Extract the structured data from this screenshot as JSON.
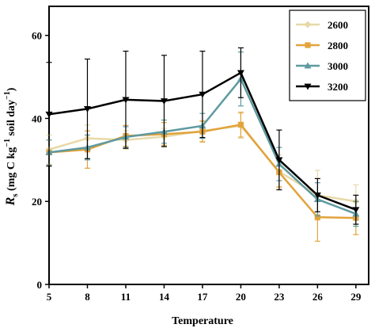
{
  "chart_data": {
    "type": "line",
    "xlabel": "Temperature",
    "ylabel": {
      "symbol": "R",
      "subscript": "s",
      "units_pre": " (mg C kg",
      "units_sup": "−1",
      "units_mid": " soil day",
      "units_sup2": "−1",
      "units_post": ")"
    },
    "x": [
      5,
      8,
      11,
      14,
      17,
      20,
      23,
      26,
      29
    ],
    "xticks": [
      "5",
      "8",
      "11",
      "14",
      "17",
      "20",
      "23",
      "26",
      "29"
    ],
    "yticks": [
      "0",
      "20",
      "40",
      "60"
    ],
    "xlim": [
      5,
      30
    ],
    "ylim": [
      0,
      67
    ],
    "grid": false,
    "legend_position": "top-right",
    "series": [
      {
        "name": "2600",
        "color": "#e8d9a8",
        "marker": "diamond",
        "values": [
          32.5,
          35.2,
          34.8,
          35.6,
          37.0,
          38.2,
          27.2,
          21.5,
          20.0
        ],
        "errors": [
          3.5,
          3.2,
          2.2,
          2.0,
          2.5,
          3.0,
          4.0,
          6.0,
          4.0
        ]
      },
      {
        "name": "2800",
        "color": "#e2a33b",
        "marker": "square",
        "values": [
          31.8,
          32.5,
          35.8,
          36.2,
          36.8,
          38.5,
          27.0,
          16.2,
          16.0
        ],
        "errors": [
          3.0,
          4.5,
          2.5,
          2.8,
          2.5,
          3.0,
          3.5,
          5.8,
          4.0
        ]
      },
      {
        "name": "3000",
        "color": "#5e9aa0",
        "marker": "triangle-up",
        "values": [
          31.8,
          33.0,
          35.5,
          36.8,
          38.2,
          49.5,
          29.0,
          20.5,
          17.0
        ],
        "errors": [
          3.0,
          3.0,
          2.5,
          2.8,
          3.0,
          6.5,
          4.0,
          4.0,
          3.0
        ]
      },
      {
        "name": "3200",
        "color": "#000000",
        "marker": "triangle-down",
        "values": [
          41.0,
          42.3,
          44.5,
          44.2,
          45.8,
          51.0,
          30.0,
          21.5,
          18.0
        ],
        "errors": [
          12.5,
          12.0,
          11.7,
          11.0,
          10.4,
          6.0,
          7.2,
          4.0,
          3.5
        ]
      }
    ]
  }
}
